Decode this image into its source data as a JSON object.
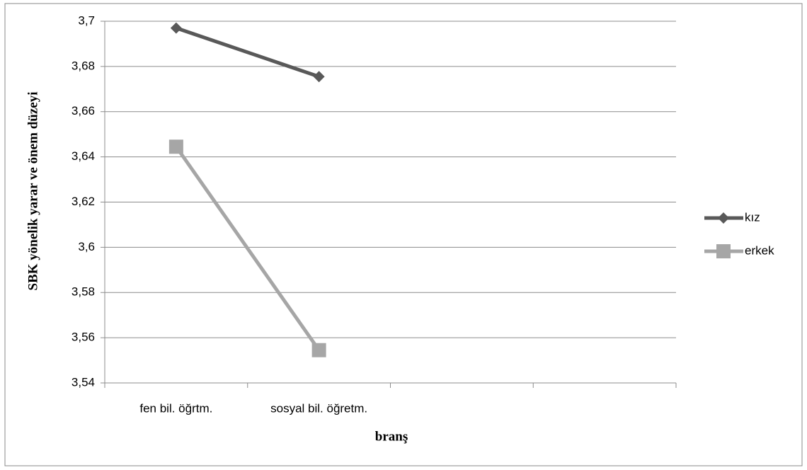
{
  "chart_data": {
    "type": "line",
    "y_label": "SBK yönelik yarar ve önem düzeyi",
    "x_label": "branş",
    "categories": [
      "fen bil. öğrtm.",
      "sosyal bil. öğretm.",
      null,
      null
    ],
    "series": [
      {
        "name": "kız",
        "color": "#595959",
        "marker": "diamond",
        "values": [
          3.697,
          3.6755,
          null,
          null
        ]
      },
      {
        "name": "erkek",
        "color": "#a6a6a6",
        "marker": "square",
        "values": [
          3.6445,
          3.5545,
          null,
          null
        ]
      }
    ],
    "ylim": [
      3.54,
      3.7
    ],
    "yticks": [
      {
        "value": 3.54,
        "label": "3,54"
      },
      {
        "value": 3.56,
        "label": "3,56"
      },
      {
        "value": 3.58,
        "label": "3,58"
      },
      {
        "value": 3.6,
        "label": "3,6"
      },
      {
        "value": 3.62,
        "label": "3,62"
      },
      {
        "value": 3.64,
        "label": "3,64"
      },
      {
        "value": 3.66,
        "label": "3,66"
      },
      {
        "value": 3.68,
        "label": "3,68"
      },
      {
        "value": 3.7,
        "label": "3,7"
      }
    ],
    "grid": true,
    "legend": "right"
  }
}
